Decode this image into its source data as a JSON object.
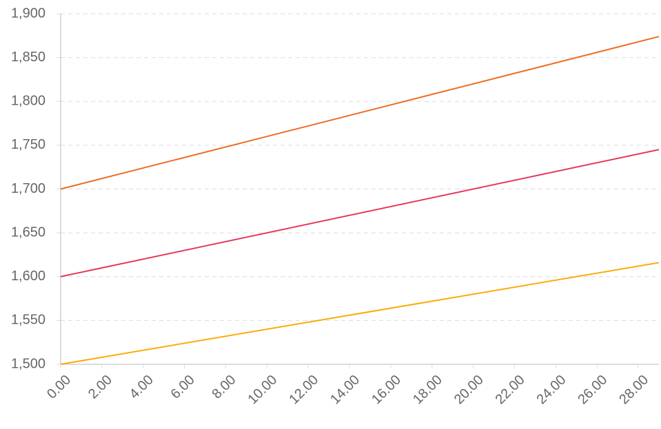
{
  "chart_data": {
    "type": "line",
    "title": "",
    "xlabel": "",
    "ylabel": "",
    "xlim": [
      0,
      29
    ],
    "ylim": [
      1500,
      1900
    ],
    "grid": true,
    "legend": "none",
    "x_ticks": [
      "0.00",
      "2.00",
      "4.00",
      "6.00",
      "8.00",
      "10.00",
      "12.00",
      "14.00",
      "16.00",
      "18.00",
      "20.00",
      "22.00",
      "24.00",
      "26.00",
      "28.00"
    ],
    "y_ticks": [
      "1,500",
      "1,550",
      "1,600",
      "1,650",
      "1,700",
      "1,750",
      "1,800",
      "1,850",
      "1,900"
    ],
    "series": [
      {
        "color": "#ef6c22",
        "x": [
          0,
          29
        ],
        "y": [
          1700,
          1874
        ]
      },
      {
        "color": "#e8355a",
        "x": [
          0,
          29
        ],
        "y": [
          1600,
          1745
        ]
      },
      {
        "color": "#fbaa0b",
        "x": [
          0,
          29
        ],
        "y": [
          1500,
          1616
        ]
      }
    ]
  }
}
